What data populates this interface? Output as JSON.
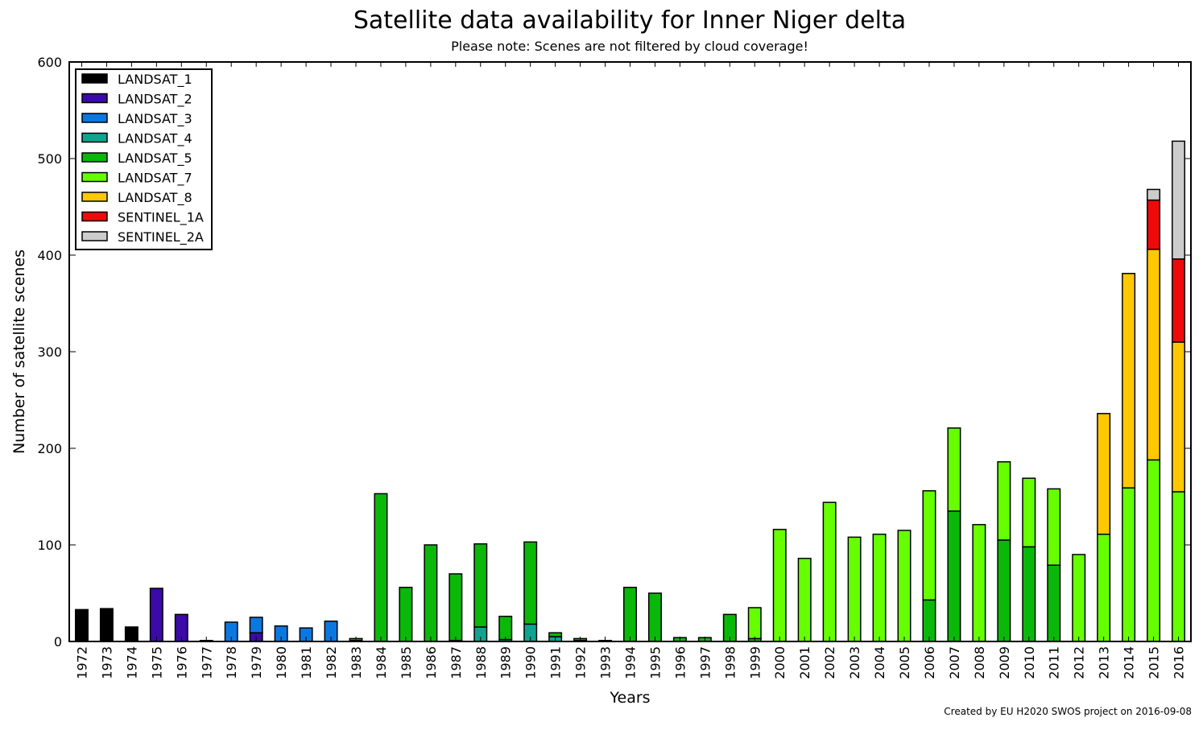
{
  "chart_data": {
    "type": "bar",
    "stacked": true,
    "title": "Satellite data availability for Inner Niger delta",
    "subtitle": "Please note: Scenes are not filtered by cloud coverage!",
    "xlabel": "Years",
    "ylabel": "Number of satellite scenes",
    "ylim": [
      0,
      600
    ],
    "yticks": [
      0,
      100,
      200,
      300,
      400,
      500,
      600
    ],
    "legend_position": "top-left",
    "grid": false,
    "credit": "Created by EU H2020 SWOS project on 2016-09-08",
    "categories": [
      "1972",
      "1973",
      "1974",
      "1975",
      "1976",
      "1977",
      "1978",
      "1979",
      "1980",
      "1981",
      "1982",
      "1983",
      "1984",
      "1985",
      "1986",
      "1987",
      "1988",
      "1989",
      "1990",
      "1991",
      "1992",
      "1993",
      "1994",
      "1995",
      "1996",
      "1997",
      "1998",
      "1999",
      "2000",
      "2001",
      "2002",
      "2003",
      "2004",
      "2005",
      "2006",
      "2007",
      "2008",
      "2009",
      "2010",
      "2011",
      "2012",
      "2013",
      "2014",
      "2015",
      "2016"
    ],
    "series": [
      {
        "name": "LANDSAT_1",
        "color": "#000000",
        "values": [
          33,
          34,
          15,
          0,
          0,
          0,
          0,
          0,
          0,
          0,
          0,
          0,
          0,
          0,
          0,
          0,
          0,
          0,
          0,
          0,
          0,
          0,
          0,
          0,
          0,
          0,
          0,
          0,
          0,
          0,
          0,
          0,
          0,
          0,
          0,
          0,
          0,
          0,
          0,
          0,
          0,
          0,
          0,
          0,
          0
        ]
      },
      {
        "name": "LANDSAT_2",
        "color": "#3b0aa8",
        "values": [
          0,
          0,
          0,
          55,
          28,
          1,
          0,
          9,
          0,
          0,
          0,
          0,
          0,
          0,
          0,
          0,
          0,
          0,
          0,
          0,
          0,
          0,
          0,
          0,
          0,
          0,
          0,
          0,
          0,
          0,
          0,
          0,
          0,
          0,
          0,
          0,
          0,
          0,
          0,
          0,
          0,
          0,
          0,
          0,
          0
        ]
      },
      {
        "name": "LANDSAT_3",
        "color": "#0a78e0",
        "values": [
          0,
          0,
          0,
          0,
          0,
          0,
          20,
          16,
          16,
          14,
          21,
          0,
          0,
          0,
          0,
          0,
          0,
          0,
          0,
          0,
          0,
          0,
          0,
          0,
          0,
          0,
          0,
          0,
          0,
          0,
          0,
          0,
          0,
          0,
          0,
          0,
          0,
          0,
          0,
          0,
          0,
          0,
          0,
          0,
          0
        ]
      },
      {
        "name": "LANDSAT_4",
        "color": "#0ea590",
        "values": [
          0,
          0,
          0,
          0,
          0,
          0,
          0,
          0,
          0,
          0,
          0,
          1,
          0,
          0,
          0,
          1,
          15,
          2,
          18,
          5,
          1,
          0,
          0,
          0,
          0,
          0,
          0,
          0,
          0,
          0,
          0,
          0,
          0,
          0,
          0,
          0,
          0,
          0,
          0,
          0,
          0,
          0,
          0,
          0,
          0
        ]
      },
      {
        "name": "LANDSAT_5",
        "color": "#0ab80a",
        "values": [
          0,
          0,
          0,
          0,
          0,
          0,
          0,
          0,
          0,
          0,
          0,
          2,
          153,
          56,
          100,
          69,
          86,
          24,
          85,
          4,
          2,
          1,
          56,
          50,
          4,
          4,
          28,
          3,
          0,
          0,
          0,
          0,
          0,
          0,
          43,
          135,
          0,
          105,
          98,
          79,
          0,
          0,
          0,
          0,
          0
        ]
      },
      {
        "name": "LANDSAT_7",
        "color": "#66ff00",
        "values": [
          0,
          0,
          0,
          0,
          0,
          0,
          0,
          0,
          0,
          0,
          0,
          0,
          0,
          0,
          0,
          0,
          0,
          0,
          0,
          0,
          0,
          0,
          0,
          0,
          0,
          0,
          0,
          32,
          116,
          86,
          144,
          108,
          111,
          115,
          113,
          86,
          121,
          81,
          71,
          79,
          90,
          111,
          159,
          188,
          155
        ]
      },
      {
        "name": "LANDSAT_8",
        "color": "#ffc800",
        "values": [
          0,
          0,
          0,
          0,
          0,
          0,
          0,
          0,
          0,
          0,
          0,
          0,
          0,
          0,
          0,
          0,
          0,
          0,
          0,
          0,
          0,
          0,
          0,
          0,
          0,
          0,
          0,
          0,
          0,
          0,
          0,
          0,
          0,
          0,
          0,
          0,
          0,
          0,
          0,
          0,
          0,
          125,
          222,
          218,
          155
        ]
      },
      {
        "name": "SENTINEL_1A",
        "color": "#ee0a0a",
        "values": [
          0,
          0,
          0,
          0,
          0,
          0,
          0,
          0,
          0,
          0,
          0,
          0,
          0,
          0,
          0,
          0,
          0,
          0,
          0,
          0,
          0,
          0,
          0,
          0,
          0,
          0,
          0,
          0,
          0,
          0,
          0,
          0,
          0,
          0,
          0,
          0,
          0,
          0,
          0,
          0,
          0,
          0,
          0,
          51,
          86
        ]
      },
      {
        "name": "SENTINEL_2A",
        "color": "#cccccc",
        "values": [
          0,
          0,
          0,
          0,
          0,
          0,
          0,
          0,
          0,
          0,
          0,
          0,
          0,
          0,
          0,
          0,
          0,
          0,
          0,
          0,
          0,
          0,
          0,
          0,
          0,
          0,
          0,
          0,
          0,
          0,
          0,
          0,
          0,
          0,
          0,
          0,
          0,
          0,
          0,
          0,
          0,
          0,
          0,
          11,
          122
        ]
      }
    ]
  }
}
